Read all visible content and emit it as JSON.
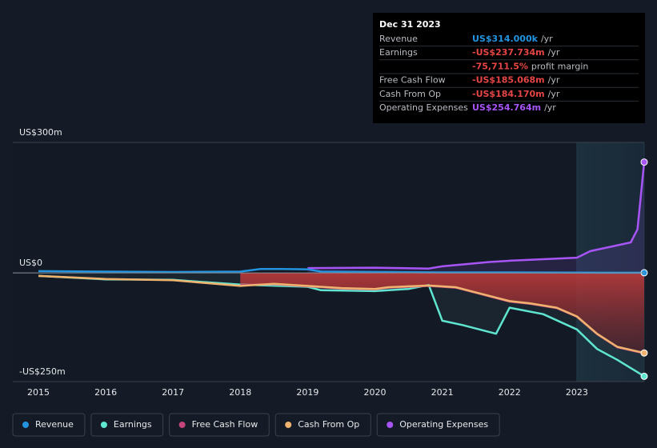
{
  "chart_data": {
    "type": "line",
    "xlim": [
      2014.62,
      2024.0
    ],
    "ylim": [
      -250,
      300
    ],
    "xticks": [
      2015,
      2016,
      2017,
      2018,
      2019,
      2020,
      2021,
      2022,
      2023
    ],
    "yticks": [
      {
        "value": 300,
        "label": "US$300m"
      },
      {
        "value": 0,
        "label": "US$0"
      },
      {
        "value": -250,
        "label": "-US$250m"
      }
    ],
    "series": [
      {
        "name": "Revenue",
        "color": "#2394df",
        "x": [
          2015,
          2016,
          2017,
          2018,
          2018.3,
          2018.6,
          2019,
          2019.2,
          2020,
          2021,
          2022,
          2023,
          2024
        ],
        "values": [
          4,
          3,
          2,
          3,
          9,
          9,
          8,
          3,
          2,
          1,
          1,
          0.5,
          0.314
        ]
      },
      {
        "name": "Earnings",
        "color": "#5ee6d0",
        "x": [
          2015,
          2016,
          2017,
          2018,
          2019,
          2019.2,
          2020,
          2020.5,
          2020.8,
          2021,
          2021.3,
          2021.8,
          2022,
          2022.5,
          2023,
          2023.3,
          2023.6,
          2024
        ],
        "values": [
          -7,
          -15,
          -16,
          -27,
          -32,
          -40,
          -42,
          -37,
          -28,
          -110,
          -120,
          -140,
          -80,
          -95,
          -130,
          -175,
          -200,
          -237.734
        ]
      },
      {
        "name": "Free Cash Flow",
        "color": "#c4457a",
        "x": [
          2018,
          2018.5,
          2019,
          2019.5,
          2020,
          2020.2,
          2020.8,
          2021.2,
          2021.5,
          2022,
          2022.3,
          2022.7,
          2023,
          2023.3,
          2023.6,
          2024
        ],
        "values": [
          -28,
          -26,
          -31,
          -36,
          -38,
          -34,
          -30,
          -34,
          -46,
          -66,
          -71,
          -81,
          -101,
          -141,
          -171,
          -185.068
        ]
      },
      {
        "name": "Cash From Op",
        "color": "#f0b36f",
        "x": [
          2015,
          2016,
          2017,
          2018,
          2018.5,
          2019,
          2019.5,
          2020,
          2020.2,
          2020.8,
          2021.2,
          2021.5,
          2022,
          2022.3,
          2022.7,
          2023,
          2023.3,
          2023.6,
          2024
        ],
        "values": [
          -7,
          -14,
          -17,
          -30,
          -25,
          -30,
          -35,
          -37,
          -33,
          -29,
          -33,
          -45,
          -65,
          -70,
          -80,
          -100,
          -140,
          -170,
          -184.17
        ]
      },
      {
        "name": "Operating Expenses",
        "color": "#a855f7",
        "x": [
          2019,
          2020,
          2020.8,
          2021,
          2021.7,
          2022,
          2023,
          2023.2,
          2023.5,
          2023.8,
          2023.9,
          2024
        ],
        "values": [
          11,
          12,
          10,
          15,
          25,
          28,
          35,
          50,
          60,
          70,
          100,
          254.764
        ]
      }
    ]
  },
  "tooltip": {
    "date": "Dec 31 2023",
    "rows": [
      {
        "label": "Revenue",
        "value": "US$314.000k",
        "unit": "/yr",
        "color": "#2394df"
      },
      {
        "label": "Earnings",
        "value": "-US$237.734m",
        "unit": "/yr",
        "color": "#e64545"
      },
      {
        "label": null,
        "value": "-75,711.5%",
        "unit": "profit margin",
        "color": "#e64545"
      },
      {
        "label": "Free Cash Flow",
        "value": "-US$185.068m",
        "unit": "/yr",
        "color": "#e64545"
      },
      {
        "label": "Cash From Op",
        "value": "-US$184.170m",
        "unit": "/yr",
        "color": "#e64545"
      },
      {
        "label": "Operating Expenses",
        "value": "US$254.764m",
        "unit": "/yr",
        "color": "#a855f7"
      }
    ]
  }
}
